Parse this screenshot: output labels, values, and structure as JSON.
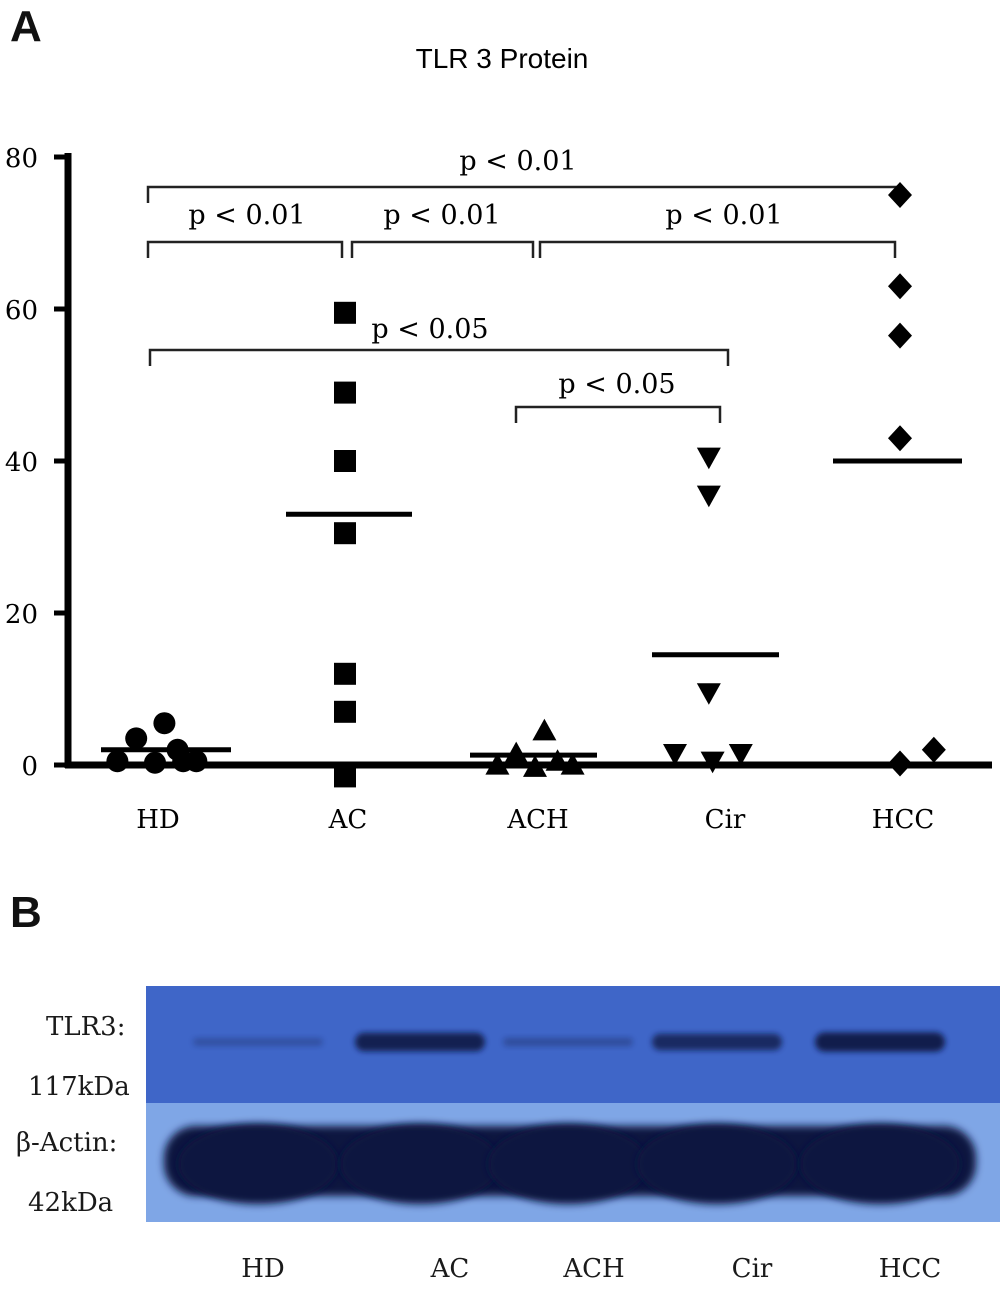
{
  "panel_a_letter": "A",
  "panel_b_letter": "B",
  "chart_data": {
    "type": "scatter",
    "title": "TLR 3 Protein",
    "xlabel": "",
    "ylabel": "",
    "ylim": [
      0,
      80
    ],
    "yticks": [
      "0",
      "20",
      "40",
      "60",
      "80"
    ],
    "categories": [
      "HD",
      "AC",
      "ACH",
      "Cir",
      "HCC"
    ],
    "series": [
      {
        "category": "HD",
        "marker": "circle",
        "mean": 2,
        "points": [
          [
            -0.2,
            0.5
          ],
          [
            -0.1,
            3.5
          ],
          [
            0.0,
            0.3
          ],
          [
            0.05,
            5.5
          ],
          [
            0.12,
            2.0
          ],
          [
            0.22,
            0.5
          ],
          [
            0.15,
            0.5
          ]
        ]
      },
      {
        "category": "AC",
        "marker": "square",
        "mean": 33,
        "points": [
          [
            0.0,
            59.5
          ],
          [
            0.0,
            49
          ],
          [
            0.0,
            40
          ],
          [
            0.0,
            30.5
          ],
          [
            0.0,
            12
          ],
          [
            0.0,
            7
          ],
          [
            0.0,
            -1.5
          ]
        ]
      },
      {
        "category": "ACH",
        "marker": "triangle-up",
        "mean": 1.3,
        "points": [
          [
            -0.2,
            0.0
          ],
          [
            -0.1,
            1.5
          ],
          [
            0.0,
            -0.3
          ],
          [
            0.05,
            4.5
          ],
          [
            0.12,
            0.5
          ],
          [
            0.2,
            0.0
          ]
        ]
      },
      {
        "category": "Cir",
        "marker": "triangle-down",
        "mean": 14.5,
        "points": [
          [
            -0.07,
            40.5
          ],
          [
            -0.07,
            35.5
          ],
          [
            -0.07,
            9.5
          ],
          [
            -0.25,
            1.5
          ],
          [
            -0.05,
            0.5
          ],
          [
            0.1,
            1.5
          ]
        ]
      },
      {
        "category": "HCC",
        "marker": "diamond",
        "mean": 40,
        "points": [
          [
            0.0,
            75
          ],
          [
            0.0,
            63
          ],
          [
            0.0,
            56.5
          ],
          [
            0.0,
            43
          ],
          [
            0.0,
            0.2
          ],
          [
            0.18,
            2.0
          ]
        ]
      }
    ],
    "comparisons": [
      {
        "from": "HD",
        "to": "HCC",
        "label": "p < 0.01"
      },
      {
        "from": "HD",
        "to": "AC",
        "label": "p < 0.01"
      },
      {
        "from": "AC",
        "to": "ACH",
        "label": "p < 0.01"
      },
      {
        "from": "ACH",
        "to": "HCC",
        "label": "p < 0.01"
      },
      {
        "from": "HD",
        "to": "Cir",
        "label": "p < 0.05"
      },
      {
        "from": "ACH",
        "to": "Cir",
        "label": "p < 0.05"
      }
    ]
  },
  "blot": {
    "tlr3_label": "TLR3:",
    "tlr3_kda": "117kDa",
    "actin_label": "β-Actin:",
    "actin_kda": "42kDa",
    "lanes": [
      "HD",
      "AC",
      "ACH",
      "Cir",
      "HCC"
    ],
    "tlr3_band_intensity": [
      0.15,
      0.9,
      0.2,
      0.75,
      0.95
    ],
    "top_color": "#3f66c8",
    "bottom_color": "#7fa6e6",
    "band_color": "#0c1440"
  }
}
